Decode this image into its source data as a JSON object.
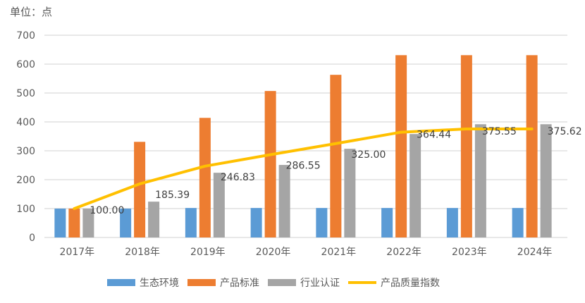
{
  "chart_data": {
    "type": "bar+line",
    "unit_label": "单位：点",
    "categories": [
      "2017年",
      "2018年",
      "2019年",
      "2020年",
      "2021年",
      "2022年",
      "2023年",
      "2024年"
    ],
    "ylim": [
      0,
      700
    ],
    "yticks": [
      0,
      100,
      200,
      300,
      400,
      500,
      600,
      700
    ],
    "grid": true,
    "legend_position": "bottom",
    "series": [
      {
        "name": "生态环境",
        "type": "bar",
        "color": "#5B9BD5",
        "values": [
          100,
          100,
          102,
          102,
          102,
          102,
          102,
          102
        ]
      },
      {
        "name": "产品标准",
        "type": "bar",
        "color": "#ED7D31",
        "values": [
          100,
          331,
          414,
          507,
          563,
          631,
          631,
          631
        ]
      },
      {
        "name": "行业认证",
        "type": "bar",
        "color": "#A5A5A5",
        "values": [
          100,
          124,
          224,
          251,
          307,
          358,
          392,
          392
        ]
      },
      {
        "name": "产品质量指数",
        "type": "line",
        "color": "#FFC000",
        "values": [
          100.0,
          185.39,
          246.83,
          286.55,
          325.0,
          364.44,
          375.55,
          375.62
        ],
        "labels": [
          "100.00",
          "185.39",
          "246.83",
          "286.55",
          "325.00",
          "364.44",
          "375.55",
          "375.62"
        ]
      }
    ]
  }
}
